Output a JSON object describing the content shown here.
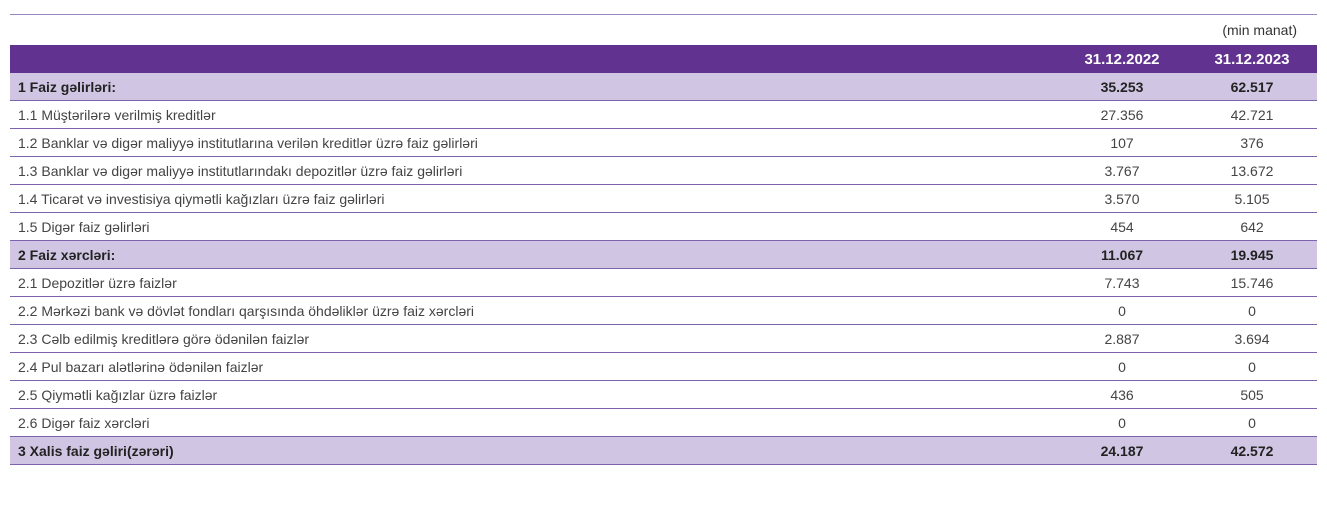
{
  "unit_label": "(min manat)",
  "columns": [
    "31.12.2022",
    "31.12.2023"
  ],
  "rows": [
    {
      "label": "1 Faiz gəlirləri:",
      "v1": "35.253",
      "v2": "62.517",
      "section": true
    },
    {
      "label": "1.1 Müştərilərə verilmiş kreditlər",
      "v1": "27.356",
      "v2": "42.721"
    },
    {
      "label": "1.2 Banklar və digər maliyyə institutlarına verilən kreditlər üzrə faiz gəlirləri",
      "v1": "107",
      "v2": "376"
    },
    {
      "label": "1.3 Banklar və digər maliyyə institutlarındakı depozitlər üzrə faiz gəlirləri",
      "v1": "3.767",
      "v2": "13.672"
    },
    {
      "label": "1.4 Ticarət və investisiya qiymətli kağızları üzrə faiz gəlirləri",
      "v1": "3.570",
      "v2": "5.105"
    },
    {
      "label": "1.5 Digər faiz gəlirləri",
      "v1": "454",
      "v2": "642"
    },
    {
      "label": "2 Faiz xərcləri:",
      "v1": "11.067",
      "v2": "19.945",
      "section": true
    },
    {
      "label": "2.1 Depozitlər üzrə faizlər",
      "v1": "7.743",
      "v2": "15.746"
    },
    {
      "label": "2.2 Mərkəzi bank və dövlət fondları qarşısında öhdəliklər üzrə faiz xərcləri",
      "v1": "0",
      "v2": "0"
    },
    {
      "label": "2.3 Cəlb edilmiş kreditlərə görə ödənilən faizlər",
      "v1": "2.887",
      "v2": "3.694"
    },
    {
      "label": "2.4 Pul bazarı alətlərinə ödənilən faizlər",
      "v1": "0",
      "v2": "0"
    },
    {
      "label": "2.5 Qiymətli kağızlar üzrə faizlər",
      "v1": "436",
      "v2": "505"
    },
    {
      "label": "2.6 Digər faiz xərcləri",
      "v1": "0",
      "v2": "0"
    },
    {
      "label": "3 Xalis faiz gəliri(zərəri)",
      "v1": "24.187",
      "v2": "42.572",
      "section": true
    }
  ]
}
